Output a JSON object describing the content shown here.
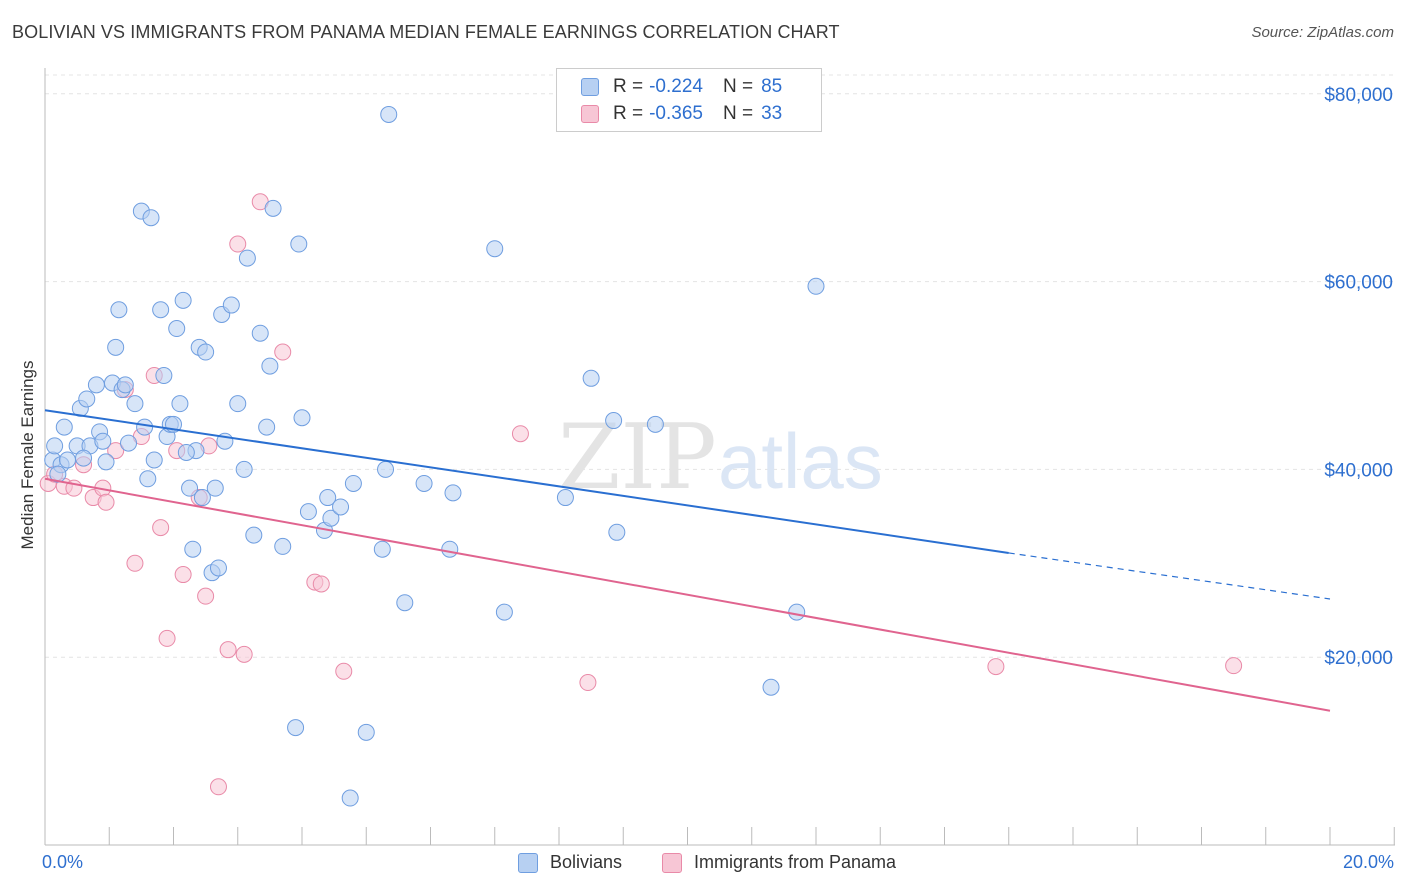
{
  "title": "BOLIVIAN VS IMMIGRANTS FROM PANAMA MEDIAN FEMALE EARNINGS CORRELATION CHART",
  "source": "Source: ZipAtlas.com",
  "watermark": {
    "zip": "ZIP",
    "atlas": "atlas"
  },
  "colors": {
    "blue_fill": "#b7d0f2",
    "blue_stroke": "#6f9ee0",
    "blue_line": "#2a6fd1",
    "pink_fill": "#f7c6d5",
    "pink_stroke": "#e98aa8",
    "pink_line": "#e0648f",
    "axis_text": "#2e6fcf",
    "grid": "#e4e4e4"
  },
  "legend_top": {
    "rows": [
      {
        "r_label": "R = ",
        "r_value": "-0.224",
        "n_label": "N = ",
        "n_value": "85",
        "color": "blue"
      },
      {
        "r_label": "R = ",
        "r_value": "-0.365",
        "n_label": "N = ",
        "n_value": "33",
        "color": "pink"
      }
    ]
  },
  "chart_data": {
    "type": "scatter",
    "title": "BOLIVIAN VS IMMIGRANTS FROM PANAMA MEDIAN FEMALE EARNINGS CORRELATION CHART",
    "xlabel": "",
    "ylabel": "Median Female Earnings",
    "xlim": [
      0,
      20
    ],
    "ylim": [
      0,
      82000
    ],
    "x_tick_labels": [
      "0.0%",
      "20.0%"
    ],
    "y_ticks": [
      20000,
      40000,
      60000,
      80000
    ],
    "y_tick_labels": [
      "$20,000",
      "$40,000",
      "$60,000",
      "$80,000"
    ],
    "grid": true,
    "legend_position": "bottom-center",
    "series": [
      {
        "name": "Bolivians",
        "color": "blue",
        "points": [
          [
            0.12,
            41000
          ],
          [
            0.15,
            42500
          ],
          [
            0.25,
            40500
          ],
          [
            0.3,
            44500
          ],
          [
            0.35,
            41000
          ],
          [
            0.5,
            42500
          ],
          [
            0.55,
            46500
          ],
          [
            0.65,
            47500
          ],
          [
            0.7,
            42500
          ],
          [
            0.8,
            49000
          ],
          [
            0.85,
            44000
          ],
          [
            0.9,
            43000
          ],
          [
            0.95,
            40800
          ],
          [
            1.05,
            49200
          ],
          [
            1.1,
            53000
          ],
          [
            1.15,
            57000
          ],
          [
            1.2,
            48500
          ],
          [
            1.25,
            49000
          ],
          [
            1.4,
            47000
          ],
          [
            1.5,
            67500
          ],
          [
            1.55,
            44500
          ],
          [
            1.6,
            39000
          ],
          [
            1.65,
            66800
          ],
          [
            1.7,
            41000
          ],
          [
            1.8,
            57000
          ],
          [
            1.85,
            50000
          ],
          [
            1.9,
            43500
          ],
          [
            1.95,
            44800
          ],
          [
            2.0,
            44800
          ],
          [
            2.05,
            55000
          ],
          [
            2.1,
            47000
          ],
          [
            2.15,
            58000
          ],
          [
            2.25,
            38000
          ],
          [
            2.3,
            31500
          ],
          [
            2.35,
            42000
          ],
          [
            2.4,
            53000
          ],
          [
            2.45,
            37000
          ],
          [
            2.5,
            52500
          ],
          [
            2.6,
            29000
          ],
          [
            2.65,
            38000
          ],
          [
            2.7,
            29500
          ],
          [
            2.75,
            56500
          ],
          [
            2.8,
            43000
          ],
          [
            2.9,
            57500
          ],
          [
            3.0,
            47000
          ],
          [
            3.15,
            62500
          ],
          [
            3.25,
            33000
          ],
          [
            3.35,
            54500
          ],
          [
            3.45,
            44500
          ],
          [
            3.5,
            51000
          ],
          [
            3.55,
            67800
          ],
          [
            3.7,
            31800
          ],
          [
            3.9,
            12500
          ],
          [
            3.95,
            64000
          ],
          [
            4.0,
            45500
          ],
          [
            4.1,
            35500
          ],
          [
            4.35,
            33500
          ],
          [
            4.4,
            37000
          ],
          [
            4.45,
            34800
          ],
          [
            4.6,
            36000
          ],
          [
            4.75,
            5000
          ],
          [
            4.8,
            38500
          ],
          [
            5.0,
            12000
          ],
          [
            5.25,
            31500
          ],
          [
            5.3,
            40000
          ],
          [
            5.35,
            77800
          ],
          [
            5.6,
            25800
          ],
          [
            5.9,
            38500
          ],
          [
            6.3,
            31500
          ],
          [
            6.35,
            37500
          ],
          [
            7.15,
            24800
          ],
          [
            7.0,
            63500
          ],
          [
            8.1,
            37000
          ],
          [
            8.5,
            49700
          ],
          [
            8.85,
            45200
          ],
          [
            8.9,
            33300
          ],
          [
            9.5,
            44800
          ],
          [
            11.3,
            16800
          ],
          [
            11.7,
            24800
          ],
          [
            12.0,
            59500
          ],
          [
            0.2,
            39500
          ],
          [
            0.6,
            41200
          ],
          [
            1.3,
            42800
          ],
          [
            2.2,
            41800
          ],
          [
            3.1,
            40000
          ]
        ]
      },
      {
        "name": "Immigrants from Panama",
        "color": "pink",
        "points": [
          [
            0.05,
            38500
          ],
          [
            0.15,
            39500
          ],
          [
            0.3,
            38200
          ],
          [
            0.45,
            38000
          ],
          [
            0.6,
            40500
          ],
          [
            0.75,
            37000
          ],
          [
            0.9,
            38000
          ],
          [
            0.95,
            36500
          ],
          [
            1.1,
            42000
          ],
          [
            1.25,
            48500
          ],
          [
            1.4,
            30000
          ],
          [
            1.5,
            43500
          ],
          [
            1.7,
            50000
          ],
          [
            1.8,
            33800
          ],
          [
            1.9,
            22000
          ],
          [
            2.05,
            42000
          ],
          [
            2.15,
            28800
          ],
          [
            2.4,
            37000
          ],
          [
            2.5,
            26500
          ],
          [
            2.55,
            42500
          ],
          [
            2.7,
            6200
          ],
          [
            2.85,
            20800
          ],
          [
            3.0,
            64000
          ],
          [
            3.1,
            20300
          ],
          [
            3.35,
            68500
          ],
          [
            3.7,
            52500
          ],
          [
            4.2,
            28000
          ],
          [
            4.3,
            27800
          ],
          [
            4.65,
            18500
          ],
          [
            7.4,
            43800
          ],
          [
            8.45,
            17300
          ],
          [
            14.8,
            19000
          ],
          [
            18.5,
            19100
          ]
        ]
      }
    ],
    "trendlines": [
      {
        "series": "Bolivians",
        "x": [
          0,
          15
        ],
        "y": [
          46300,
          31100
        ],
        "dashed_extension": [
          15,
          20
        ],
        "dashed_y": [
          31100,
          26200
        ]
      },
      {
        "series": "Immigrants from Panama",
        "x": [
          0,
          20
        ],
        "y": [
          39000,
          14300
        ]
      }
    ]
  },
  "bottom_legend": {
    "items": [
      "Bolivians",
      "Immigrants from Panama"
    ]
  }
}
